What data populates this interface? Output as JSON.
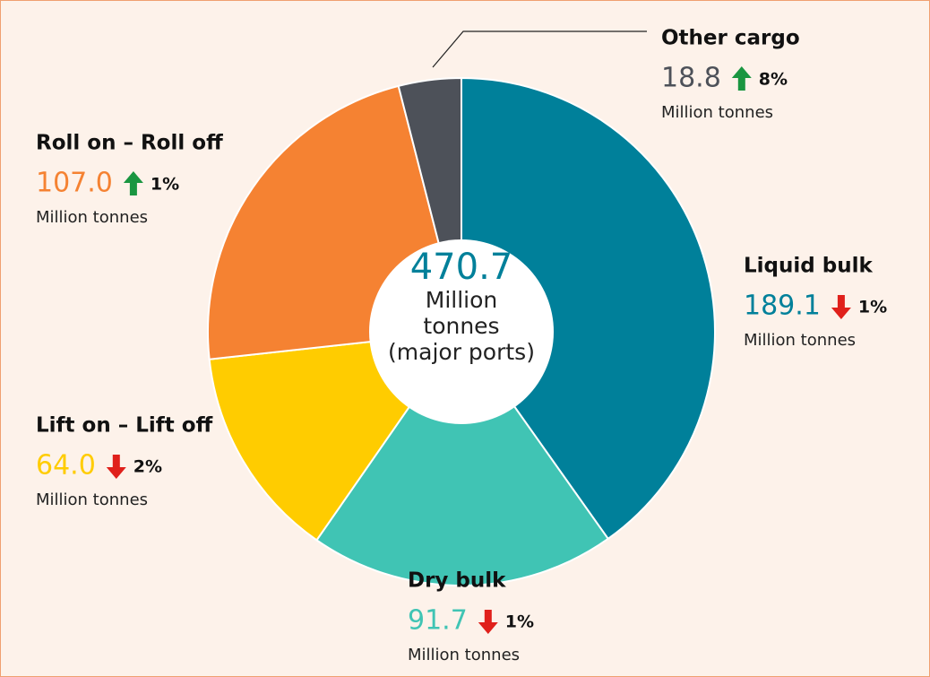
{
  "chart_data": {
    "type": "donut",
    "categories": [
      "Liquid bulk",
      "Dry bulk",
      "Lift on – Lift off",
      "Roll on – Roll off",
      "Other cargo"
    ],
    "values": [
      189.1,
      91.7,
      64.0,
      107.0,
      18.8
    ],
    "value_labels": [
      "189.1",
      "91.7",
      "64.0",
      "107.0",
      "18.8"
    ],
    "colors": [
      "#00809a",
      "#40c4b4",
      "#ffcc00",
      "#f58232",
      "#4d5159"
    ],
    "changes": [
      {
        "label": "1%",
        "direction": "down"
      },
      {
        "label": "1%",
        "direction": "down"
      },
      {
        "label": "2%",
        "direction": "down"
      },
      {
        "label": "1%",
        "direction": "up"
      },
      {
        "label": "8%",
        "direction": "up"
      }
    ],
    "unit": "Million tonnes",
    "total": 470.7,
    "center_label": [
      "Million",
      "tonnes",
      "(major ports)"
    ]
  }
}
